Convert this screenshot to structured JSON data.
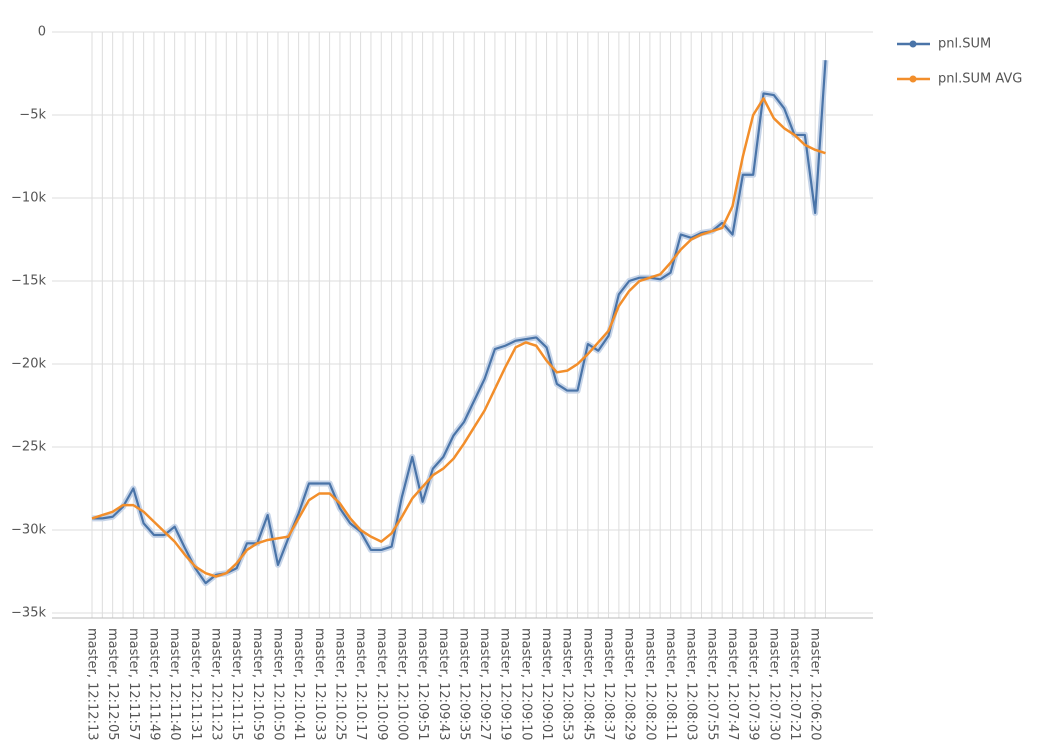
{
  "chart_data": {
    "type": "line",
    "categories": [
      "master, 12:12:13",
      null,
      "master, 12:12:05",
      null,
      "master, 12:11:57",
      null,
      "master, 12:11:49",
      null,
      "master, 12:11:40",
      null,
      "master, 12:11:31",
      null,
      "master, 12:11:23",
      null,
      "master, 12:11:15",
      null,
      "master, 12:10:59",
      null,
      "master, 12:10:50",
      null,
      "master, 12:10:41",
      null,
      "master, 12:10:33",
      null,
      "master, 12:10:25",
      null,
      "master, 12:10:17",
      null,
      "master, 12:10:09",
      null,
      "master, 12:10:00",
      null,
      "master, 12:09:51",
      null,
      "master, 12:09:43",
      null,
      "master, 12:09:35",
      null,
      "master, 12:09:27",
      null,
      "master, 12:09:19",
      null,
      "master, 12:09:10",
      null,
      "master, 12:09:01",
      null,
      "master, 12:08:53",
      null,
      "master, 12:08:45",
      null,
      "master, 12:08:37",
      null,
      "master, 12:08:29",
      null,
      "master, 12:08:20",
      null,
      "master, 12:08:11",
      null,
      "master, 12:08:03",
      null,
      "master, 12:07:55",
      null,
      "master, 12:07:47",
      null,
      "master, 12:07:39",
      null,
      "master, 12:07:30",
      null,
      "master, 12:07:21",
      null,
      "master, 12:06:20",
      null
    ],
    "series": [
      {
        "name": "pnl.SUM",
        "color": "#4a74a8",
        "values": [
          -29300,
          -29300,
          -29200,
          -28600,
          -27500,
          -29600,
          -30300,
          -30300,
          -29800,
          -31100,
          -32300,
          -33200,
          -32700,
          -32600,
          -32300,
          -30800,
          -30800,
          -29100,
          -32100,
          -30500,
          -29000,
          -27200,
          -27200,
          -27200,
          -28700,
          -29600,
          -30100,
          -31200,
          -31200,
          -31000,
          -28000,
          -25600,
          -28300,
          -26300,
          -25600,
          -24300,
          -23500,
          -22200,
          -20900,
          -19100,
          -18900,
          -18600,
          -18500,
          -18400,
          -19000,
          -21200,
          -21600,
          -21600,
          -18800,
          -19200,
          -18300,
          -15800,
          -15000,
          -14800,
          -14800,
          -14900,
          -14500,
          -12200,
          -12400,
          -12100,
          -12000,
          -11500,
          -12200,
          -8600,
          -8600,
          -3700,
          -3800,
          -4600,
          -6200,
          -6200,
          -10900,
          -1700
        ]
      },
      {
        "name": "pnl.SUM AVG",
        "color": "#f28e2b",
        "values": [
          -29300,
          -29100,
          -28900,
          -28500,
          -28500,
          -28900,
          -29500,
          -30100,
          -30700,
          -31500,
          -32200,
          -32600,
          -32800,
          -32600,
          -32000,
          -31200,
          -30800,
          -30600,
          -30500,
          -30400,
          -29300,
          -28200,
          -27800,
          -27800,
          -28400,
          -29300,
          -30000,
          -30400,
          -30700,
          -30200,
          -29200,
          -28100,
          -27400,
          -26700,
          -26300,
          -25700,
          -24800,
          -23800,
          -22800,
          -21500,
          -20200,
          -19000,
          -18700,
          -18900,
          -19800,
          -20500,
          -20400,
          -20000,
          -19400,
          -18700,
          -18000,
          -16500,
          -15600,
          -15000,
          -14800,
          -14600,
          -13900,
          -13100,
          -12500,
          -12200,
          -12000,
          -11800,
          -10500,
          -7500,
          -5000,
          -4000,
          -5200,
          -5800,
          -6200,
          -6800,
          -7100,
          -7300
        ]
      }
    ],
    "ylim": [
      -35300,
      0
    ],
    "yticks": [
      0,
      {
        "value": -5000,
        "label": "−5k"
      },
      {
        "value": -10000,
        "label": "−10k"
      },
      {
        "value": -15000,
        "label": "−15k"
      },
      {
        "value": -20000,
        "label": "−20k"
      },
      {
        "value": -25000,
        "label": "−25k"
      },
      {
        "value": -30000,
        "label": "−30k"
      },
      {
        "value": -35000,
        "label": "−35k"
      }
    ],
    "grid": true,
    "legend": "top-right"
  }
}
